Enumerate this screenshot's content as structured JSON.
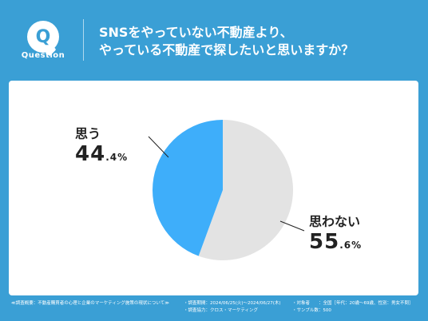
{
  "header": {
    "badge_letter": "Q",
    "badge_word": "Question",
    "question_line1": "SNSをやっていない不動産より、",
    "question_line2": "やっている不動産で探したいと思いますか？"
  },
  "chart_data": {
    "type": "pie",
    "categories": [
      "思う",
      "思わない"
    ],
    "values": [
      44.4,
      55.6
    ],
    "colors": [
      "#3eaefa",
      "#e3e3e3"
    ],
    "start": "12 o'clock",
    "direction": "counter-clockwise for 思う"
  },
  "labels": {
    "yes_name": "思う",
    "yes_int": "44",
    "yes_dec": ".4%",
    "no_name": "思わない",
    "no_int": "55",
    "no_dec": ".6%"
  },
  "footer": {
    "survey_title": "≪調査概要：不動産購買者の心理と企業のマーケティング施策の現状について≫",
    "period": "・調査期間：2024/06/25(火)〜2024/06/27(木)",
    "partner": "・調査協力：クロス・マーケティング",
    "target": "・対象者　　：全国［年代：20歳〜69歳、性別：男女不問］",
    "samples": "・サンプル数：500"
  }
}
